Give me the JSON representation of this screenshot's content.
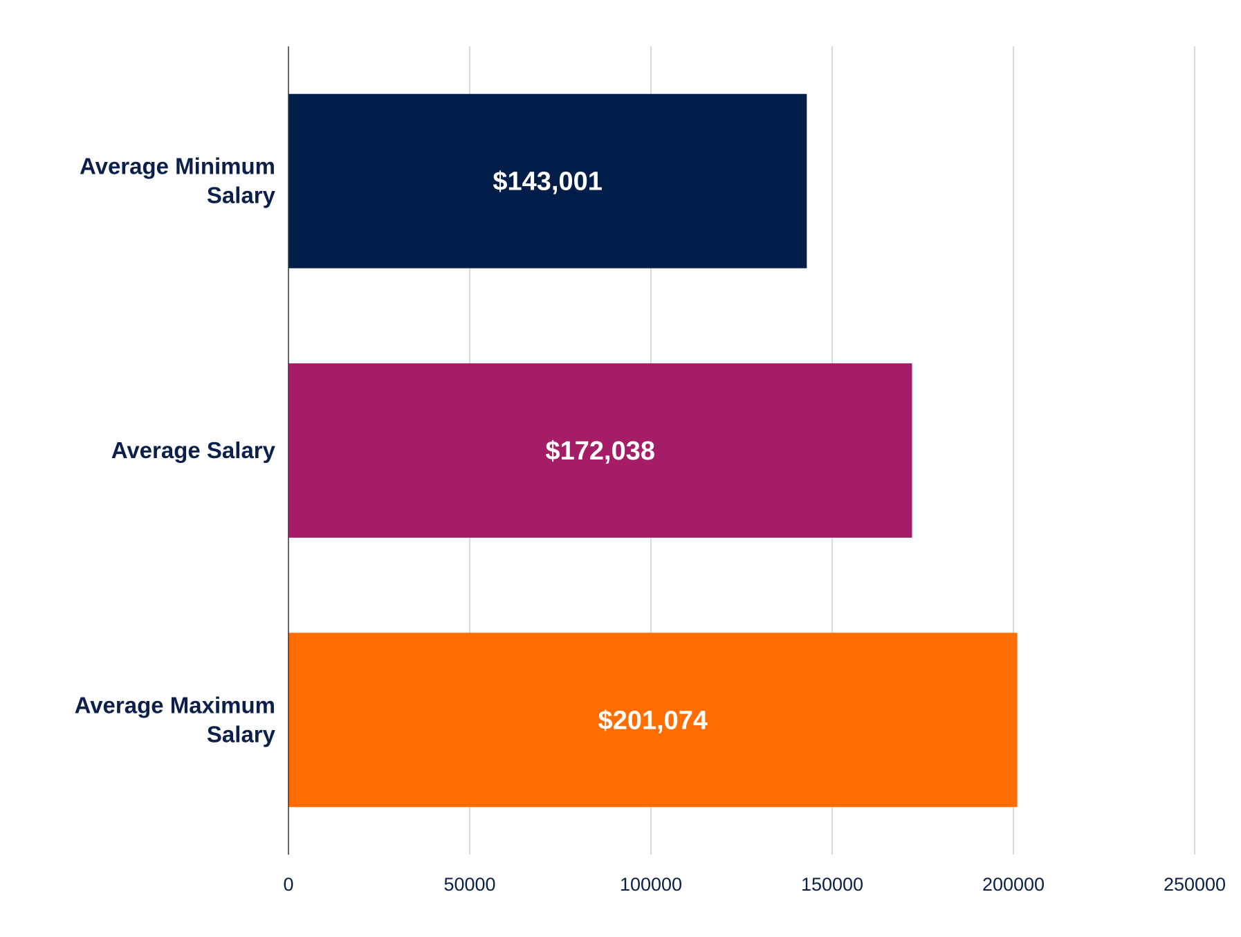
{
  "chart_data": {
    "type": "bar",
    "orientation": "horizontal",
    "title": "",
    "xlabel": "",
    "ylabel": "",
    "categories": [
      [
        "Average Minimum",
        "Salary"
      ],
      [
        "Average Salary"
      ],
      [
        "Average Maximum",
        "Salary"
      ]
    ],
    "category_names": [
      "Average Minimum Salary",
      "Average Salary",
      "Average Maximum Salary"
    ],
    "values": [
      143001,
      172038,
      201074
    ],
    "data_labels": [
      "$143,001",
      "$172,038",
      "$201,074"
    ],
    "colors": [
      "#021e48",
      "#a51c67",
      "#ff6d00"
    ],
    "xlim": [
      0,
      250000
    ],
    "xticks": [
      0,
      50000,
      100000,
      150000,
      200000,
      250000
    ],
    "xtick_labels": [
      "0",
      "50000",
      "100000",
      "150000",
      "200000",
      "250000"
    ],
    "grid": true,
    "legend": "none"
  }
}
